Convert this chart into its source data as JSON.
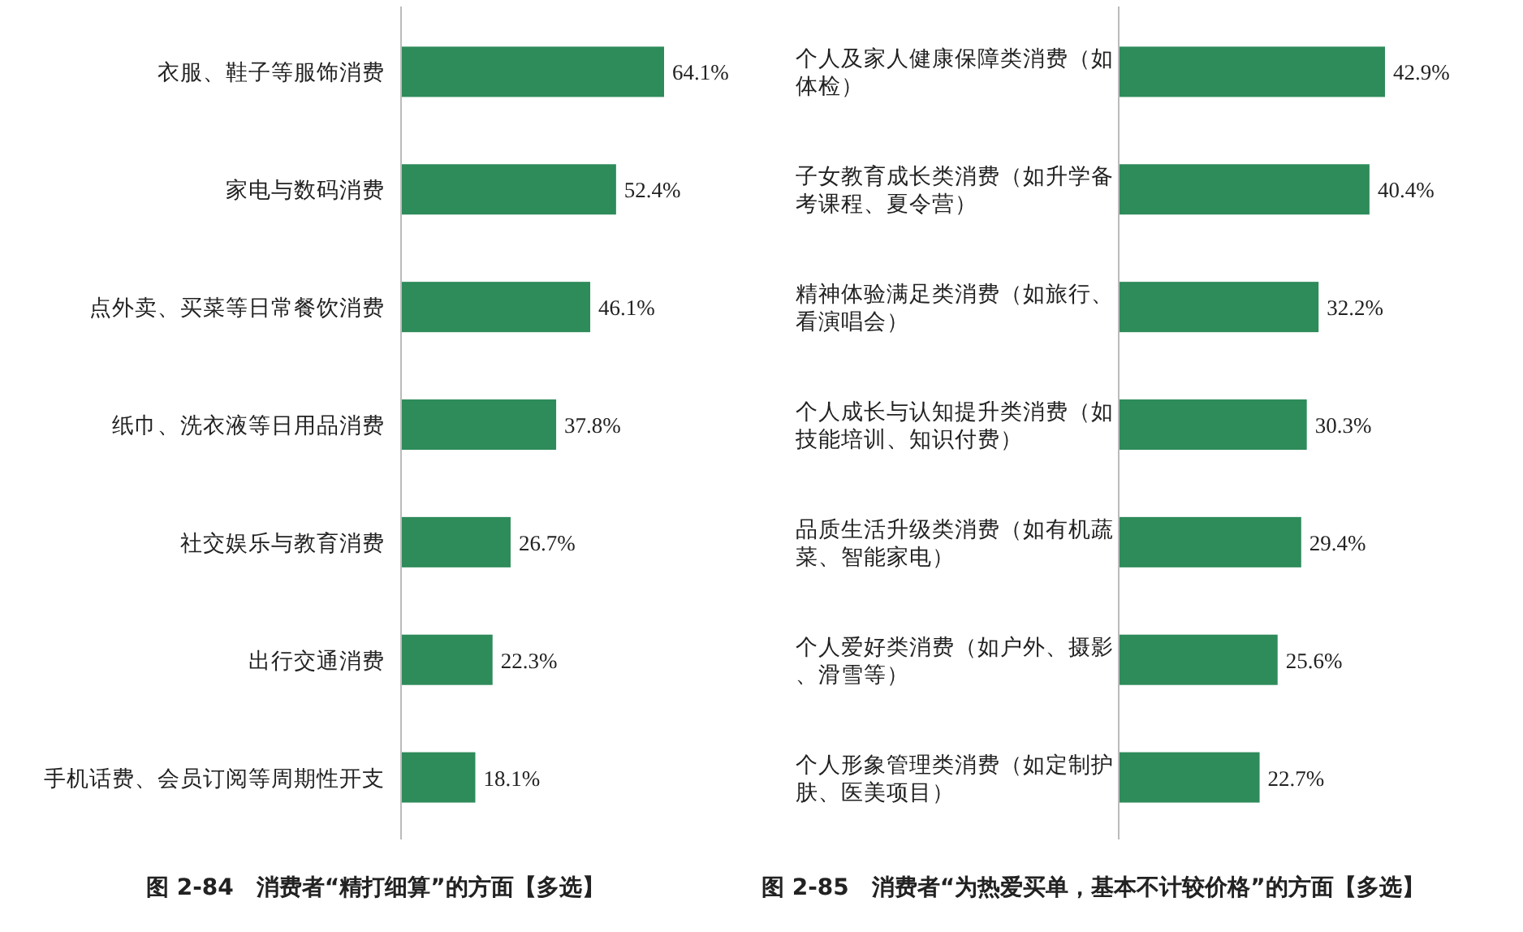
{
  "chart_data": [
    {
      "type": "bar",
      "orientation": "horizontal",
      "title": "图 2-84　消费者“精打细算”的方面【多选】",
      "categories": [
        "衣服、鞋子等服饰消费",
        "家电与数码消费",
        "点外卖、买菜等日常餐饮消费",
        "纸巾、洗衣液等日用品消费",
        "社交娱乐与教育消费",
        "出行交通消费",
        "手机话费、会员订阅等周期性开支"
      ],
      "values": [
        64.1,
        52.4,
        46.1,
        37.8,
        26.7,
        22.3,
        18.1
      ],
      "value_labels": [
        "64.1%",
        "52.4%",
        "46.1%",
        "37.8%",
        "26.7%",
        "22.3%",
        "18.1%"
      ],
      "color": "#2e8b5a"
    },
    {
      "type": "bar",
      "orientation": "horizontal",
      "title": "图 2-85　消费者“为热爱买单，基本不计较价格”的方面【多选】",
      "categories": [
        "个人及家人健康保障类消费（如体检）",
        "子女教育成长类消费（如升学备考课程、夏令营）",
        "精神体验满足类消费（如旅行、看演唱会）",
        "个人成长与认知提升类消费（如技能培训、知识付费）",
        "品质生活升级类消费（如有机蔬菜、智能家电）",
        "个人爱好类消费（如户外、摄影、滑雪等）",
        "个人形象管理类消费（如定制护肤、医美项目）"
      ],
      "values": [
        42.9,
        40.4,
        32.2,
        30.3,
        29.4,
        25.6,
        22.7
      ],
      "value_labels": [
        "42.9%",
        "40.4%",
        "32.2%",
        "30.3%",
        "29.4%",
        "25.6%",
        "22.7%"
      ],
      "color": "#2e8b5a"
    }
  ]
}
